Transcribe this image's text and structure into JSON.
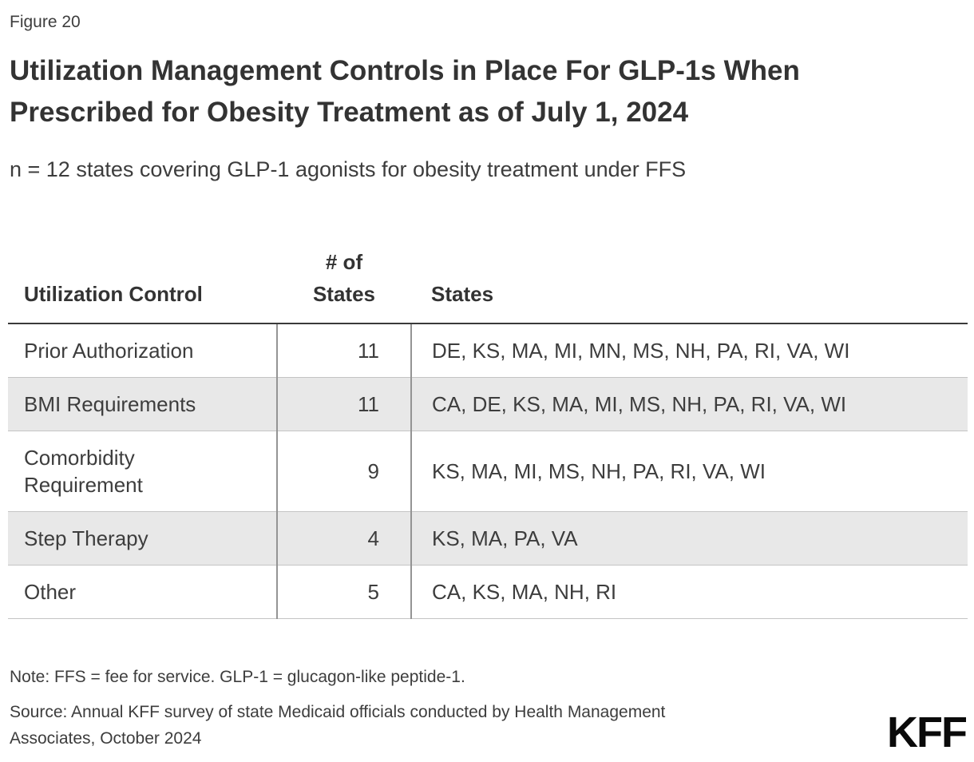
{
  "figure_label": "Figure 20",
  "title": {
    "line1": "Utilization Management Controls in Place For GLP-1s When",
    "line2": "Prescribed for Obesity Treatment as of July 1, 2024"
  },
  "subtitle": "n = 12 states covering GLP-1 agonists for obesity treatment under FFS",
  "table": {
    "header": {
      "control": "Utilization Control",
      "count_line1": "# of",
      "count_line2": "States",
      "states": "States"
    },
    "rows": [
      {
        "control": "Prior Authorization",
        "count": "11",
        "states": "DE, KS, MA, MI, MN, MS, NH, PA, RI, VA, WI"
      },
      {
        "control": "BMI Requirements",
        "count": "11",
        "states": "CA, DE, KS, MA, MI, MS, NH, PA, RI, VA, WI"
      },
      {
        "control": "Comorbidity Requirement",
        "count": "9",
        "states": "KS, MA, MI, MS, NH, PA, RI, VA, WI"
      },
      {
        "control": "Step Therapy",
        "count": "4",
        "states": "KS, MA, PA, VA"
      },
      {
        "control": "Other",
        "count": "5",
        "states": "CA, KS, MA, NH, RI"
      }
    ]
  },
  "note": "Note: FFS = fee for service. GLP-1 = glucagon-like peptide-1.",
  "source": {
    "line1": "Source: Annual KFF survey of state Medicaid officials conducted by Health Management",
    "line2": "Associates, October 2024"
  },
  "logo_text": "KFF",
  "colors": {
    "title_text": "#333333",
    "text": "#3d3d3d",
    "header_rule": "#3a3a3a",
    "row_rule": "#c4c4c4",
    "col_rule": "#949494",
    "shaded_row": "#e8e8e8",
    "logo": "#0a0a0a"
  },
  "chart_data": {
    "type": "table",
    "title": "Utilization Management Controls in Place For GLP-1s When Prescribed for Obesity Treatment as of July 1, 2024",
    "subtitle": "n = 12 states covering GLP-1 agonists for obesity treatment under FFS",
    "columns": [
      "Utilization Control",
      "# of States",
      "States"
    ],
    "rows": [
      [
        "Prior Authorization",
        11,
        "DE, KS, MA, MI, MN, MS, NH, PA, RI, VA, WI"
      ],
      [
        "BMI Requirements",
        11,
        "CA, DE, KS, MA, MI, MS, NH, PA, RI, VA, WI"
      ],
      [
        "Comorbidity Requirement",
        9,
        "KS, MA, MI, MS, NH, PA, RI, VA, WI"
      ],
      [
        "Step Therapy",
        4,
        "KS, MA, PA, VA"
      ],
      [
        "Other",
        5,
        "CA, KS, MA, NH, RI"
      ]
    ],
    "note": "Note: FFS = fee for service. GLP-1 = glucagon-like peptide-1.",
    "source": "Source: Annual KFF survey of state Medicaid officials conducted by Health Management Associates, October 2024"
  }
}
